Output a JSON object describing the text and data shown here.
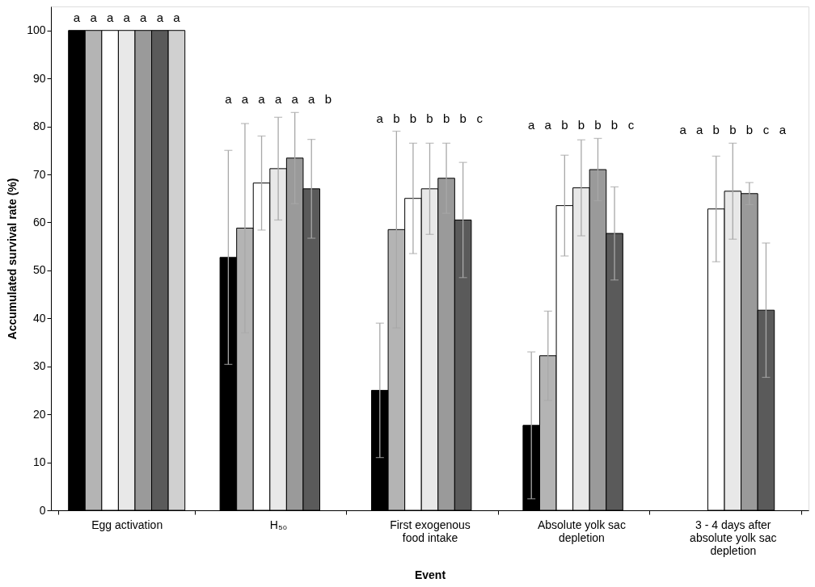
{
  "chart_data": {
    "type": "bar",
    "xlabel": "Event",
    "ylabel": "Accumulated survival rate (%)",
    "categories": [
      "Egg activation",
      "H₅₀",
      "First exogenous food intake",
      "Absolute yolk sac depletion",
      "3 - 4 days after absolute yolk sac depletion"
    ],
    "series": [
      {
        "color": "#000000",
        "values": [
          100,
          52.7,
          25,
          17.7,
          null
        ],
        "errors": [
          null,
          22.3,
          14,
          15.3,
          null
        ]
      },
      {
        "color": "#b4b4b4",
        "values": [
          100,
          58.8,
          58.5,
          32.2,
          null
        ],
        "errors": [
          null,
          21.8,
          20.5,
          9.3,
          null
        ]
      },
      {
        "color": "#ffffff",
        "values": [
          100,
          68.2,
          65,
          63.5,
          62.8
        ],
        "errors": [
          null,
          9.8,
          11.5,
          10.5,
          11
        ]
      },
      {
        "color": "#e8e8e8",
        "values": [
          100,
          71.2,
          67,
          67.2,
          66.5
        ],
        "errors": [
          null,
          10.7,
          9.5,
          10,
          10
        ]
      },
      {
        "color": "#9a9a9a",
        "values": [
          100,
          73.4,
          69.2,
          71,
          66
        ],
        "errors": [
          null,
          9.5,
          7.3,
          6.5,
          2.3
        ]
      },
      {
        "color": "#5a5a5a",
        "values": [
          100,
          67,
          60.5,
          57.7,
          41.7
        ],
        "errors": [
          null,
          10.3,
          12,
          9.7,
          14
        ]
      },
      {
        "color": "#d0d0d0",
        "values": [
          100,
          null,
          null,
          null,
          null
        ]
      }
    ],
    "ylim": [
      0,
      105
    ],
    "yticks": [
      0,
      10,
      20,
      30,
      40,
      50,
      60,
      70,
      80,
      90,
      100
    ],
    "grid": false,
    "legend": false,
    "annotations": [
      "a",
      "a",
      "a",
      "a",
      "a",
      "a",
      "a",
      "a",
      "a",
      "a",
      "a",
      "a",
      "a",
      "b",
      "a",
      "b",
      "b",
      "b",
      "b",
      "b",
      "c",
      "a",
      "a",
      "b",
      "b",
      "b",
      "b",
      "c",
      "a",
      "a",
      "b",
      "b",
      "b",
      "c",
      "a"
    ]
  }
}
